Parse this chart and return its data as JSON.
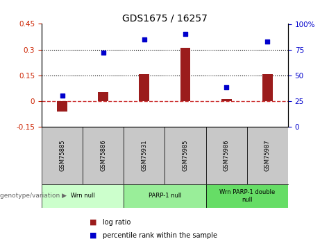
{
  "title": "GDS1675 / 16257",
  "samples": [
    "GSM75885",
    "GSM75886",
    "GSM75931",
    "GSM75985",
    "GSM75986",
    "GSM75987"
  ],
  "log_ratio": [
    -0.06,
    0.05,
    0.155,
    0.31,
    0.01,
    0.155
  ],
  "percentile_rank": [
    30,
    72,
    85,
    90,
    38,
    83
  ],
  "ylim_left": [
    -0.15,
    0.45
  ],
  "ylim_right": [
    0,
    100
  ],
  "yticks_left": [
    -0.15,
    0.0,
    0.15,
    0.3,
    0.45
  ],
  "yticks_right": [
    0,
    25,
    50,
    75,
    100
  ],
  "ytick_labels_left": [
    "-0.15",
    "0",
    "0.15",
    "0.3",
    "0.45"
  ],
  "ytick_labels_right": [
    "0",
    "25",
    "50",
    "75",
    "100%"
  ],
  "hlines": [
    0.15,
    0.3
  ],
  "bar_color": "#9b1c1c",
  "dot_color": "#0000cc",
  "zero_line_color": "#cc3333",
  "hline_color": "#000000",
  "groups": [
    {
      "label": "Wrn null",
      "samples": [
        0,
        1
      ],
      "color": "#ccffcc"
    },
    {
      "label": "PARP-1 null",
      "samples": [
        2,
        3
      ],
      "color": "#99ee99"
    },
    {
      "label": "Wrn PARP-1 double\nnull",
      "samples": [
        4,
        5
      ],
      "color": "#66dd66"
    }
  ],
  "genotype_label": "genotype/variation",
  "legend_log_ratio": "log ratio",
  "legend_percentile": "percentile rank within the sample",
  "plot_bg_color": "#ffffff",
  "sample_box_color": "#c8c8c8",
  "bar_width": 0.25
}
